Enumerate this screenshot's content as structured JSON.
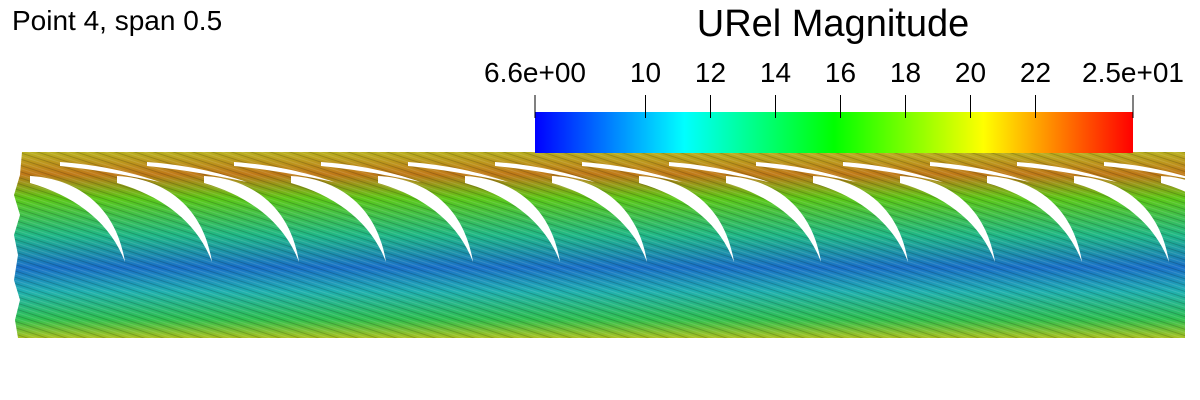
{
  "title": "Point 4, span 0.5",
  "colorbar": {
    "title": "URel Magnitude",
    "range": [
      6.6,
      25
    ],
    "ticks": [
      {
        "value": 6.6,
        "label": "6.6e+00"
      },
      10,
      12,
      14,
      16,
      18,
      20,
      22,
      {
        "value": 25,
        "label": "2.5e+01"
      }
    ],
    "colors": [
      "#0000ff",
      "#00ffff",
      "#00ff00",
      "#ffff00",
      "#ff0000"
    ]
  }
}
